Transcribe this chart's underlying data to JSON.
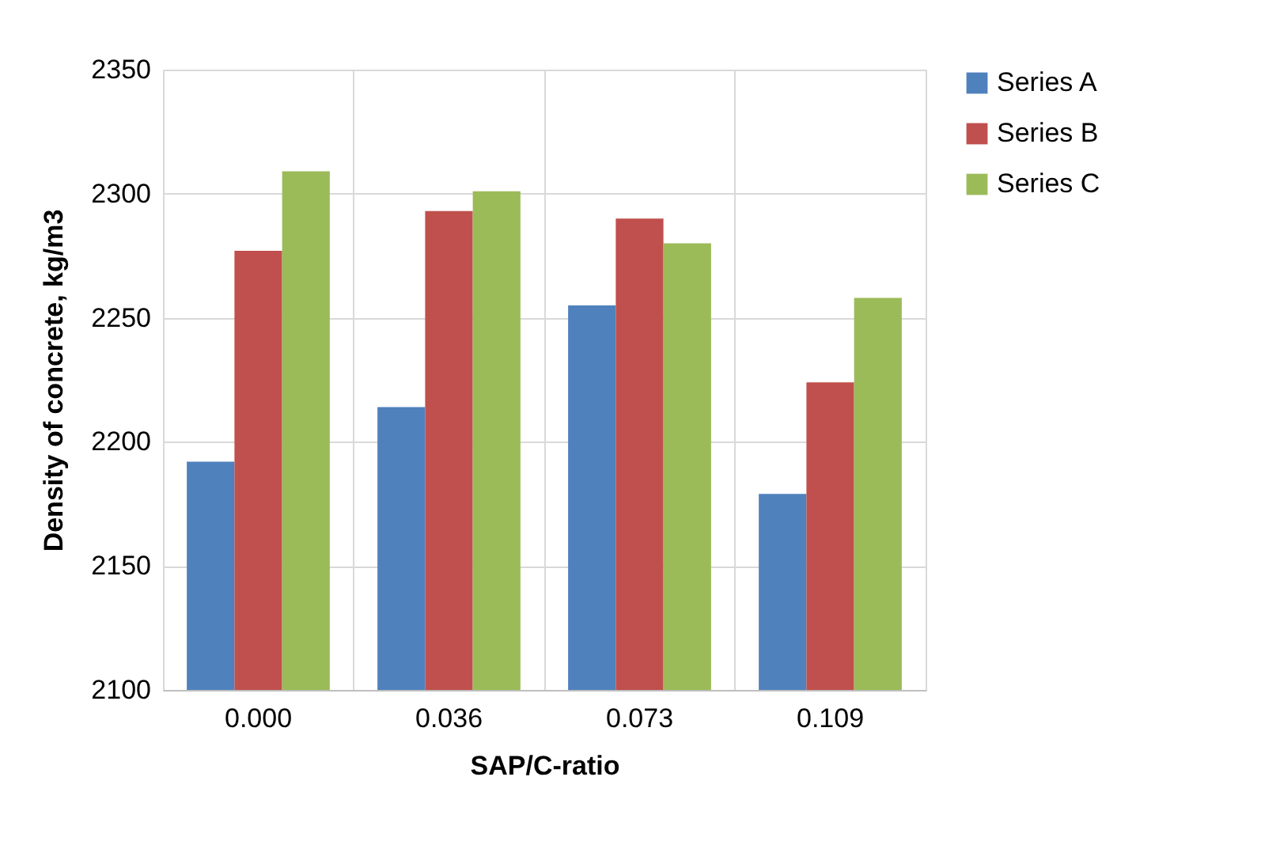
{
  "chart_data": {
    "type": "bar",
    "xlabel": "SAP/C-ratio",
    "ylabel": "Density of concrete, kg/m3",
    "categories": [
      "0.000",
      "0.036",
      "0.073",
      "0.109"
    ],
    "series": [
      {
        "name": "Series A",
        "color": "#4f81bd",
        "values": [
          2192,
          2214,
          2255,
          2179
        ]
      },
      {
        "name": "Series B",
        "color": "#c0504d",
        "values": [
          2277,
          2293,
          2290,
          2224
        ]
      },
      {
        "name": "Series C",
        "color": "#9bbb59",
        "values": [
          2309,
          2301,
          2280,
          2258
        ]
      }
    ],
    "ylim": [
      2100,
      2350
    ],
    "yticks": [
      2100,
      2150,
      2200,
      2250,
      2300,
      2350
    ],
    "grid": true,
    "legend": "right"
  }
}
